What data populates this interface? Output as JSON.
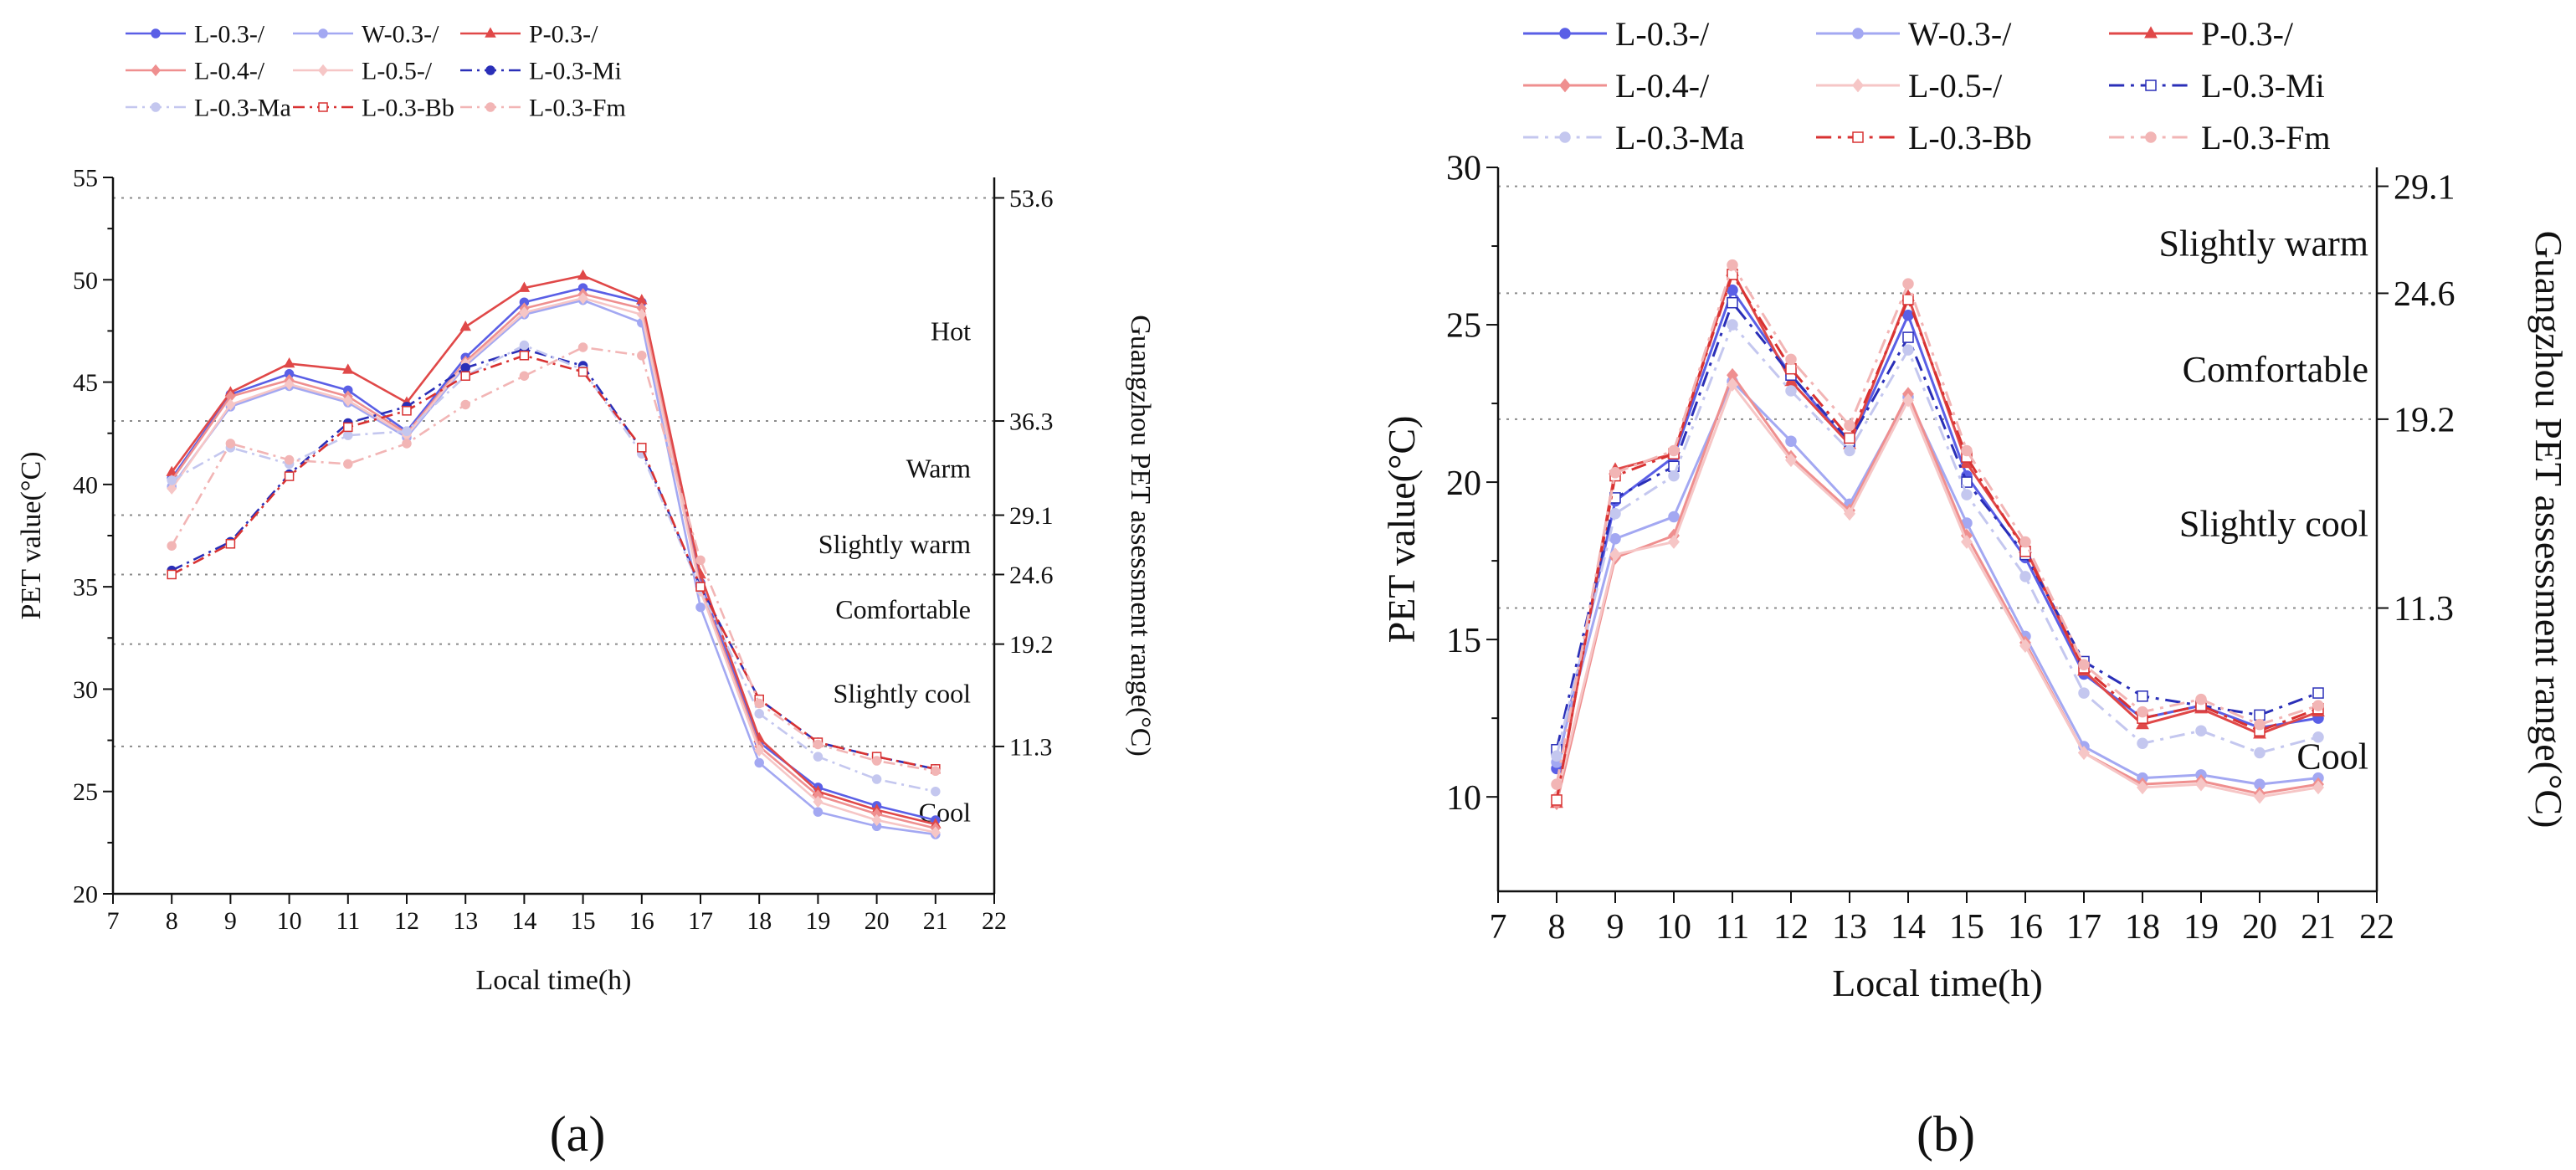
{
  "figure": {
    "panel_labels": [
      "(a)",
      "(b)"
    ]
  },
  "chart_data": [
    {
      "type": "line",
      "panel": "(a)",
      "xlabel": "Local time(h)",
      "ylabel": "PET value(°C)",
      "y2label": "Guangzhou PET assessment range(°C)",
      "xlim": [
        7,
        22
      ],
      "ylim": [
        20,
        55
      ],
      "xticks": [
        7,
        8,
        9,
        10,
        11,
        12,
        13,
        14,
        15,
        16,
        17,
        18,
        19,
        20,
        21,
        22
      ],
      "yticks": [
        20,
        25,
        30,
        35,
        40,
        45,
        50,
        55
      ],
      "x": [
        8,
        9,
        10,
        11,
        12,
        13,
        14,
        15,
        16,
        17,
        18,
        19,
        20,
        21
      ],
      "legend_position": "top",
      "thresholds": [
        {
          "y": 54.0,
          "label": "53.6"
        },
        {
          "y": 43.1,
          "label": "36.3"
        },
        {
          "y": 38.5,
          "label": "29.1"
        },
        {
          "y": 35.6,
          "label": "24.6"
        },
        {
          "y": 32.2,
          "label": "19.2"
        },
        {
          "y": 27.2,
          "label": "11.3"
        }
      ],
      "zones": [
        {
          "y": 47.5,
          "label": "Hot"
        },
        {
          "y": 40.8,
          "label": "Warm"
        },
        {
          "y": 37.1,
          "label": "Slightly warm"
        },
        {
          "y": 33.9,
          "label": "Comfortable"
        },
        {
          "y": 29.8,
          "label": "Slightly cool"
        },
        {
          "y": 24.0,
          "label": "Cool"
        }
      ],
      "series": [
        {
          "name": "L-0.3-/",
          "color": "#5a5fe6",
          "dash": "solid",
          "marker": "circle",
          "values": [
            40.3,
            44.4,
            45.4,
            44.6,
            42.6,
            46.2,
            48.9,
            49.6,
            48.9,
            35.2,
            27.4,
            25.2,
            24.3,
            23.6
          ]
        },
        {
          "name": "W-0.3-/",
          "color": "#a3a8f2",
          "dash": "solid",
          "marker": "circle",
          "values": [
            39.9,
            43.8,
            44.8,
            44.0,
            42.3,
            45.8,
            48.3,
            49.0,
            47.9,
            34.0,
            26.4,
            24.0,
            23.3,
            22.9
          ]
        },
        {
          "name": "P-0.3-/",
          "color": "#e04848",
          "dash": "solid",
          "marker": "triangle",
          "values": [
            40.6,
            44.5,
            45.9,
            45.6,
            44.0,
            47.7,
            49.6,
            50.2,
            49.0,
            35.6,
            27.6,
            25.0,
            24.1,
            23.4
          ]
        },
        {
          "name": "L-0.4-/",
          "color": "#ef8f8f",
          "dash": "solid",
          "marker": "diamond",
          "values": [
            40.2,
            44.3,
            45.1,
            44.3,
            42.5,
            46.0,
            48.6,
            49.3,
            48.6,
            35.0,
            27.2,
            24.8,
            23.9,
            23.2
          ]
        },
        {
          "name": "L-0.5-/",
          "color": "#f6c6c6",
          "dash": "solid",
          "marker": "diamond",
          "values": [
            39.8,
            43.9,
            44.9,
            44.1,
            42.4,
            45.9,
            48.4,
            49.1,
            48.3,
            34.8,
            27.0,
            24.5,
            23.6,
            23.0
          ]
        },
        {
          "name": "L-0.3-Mi",
          "color": "#2a2fb8",
          "dash": "dashdot",
          "marker": "circle",
          "values": [
            35.8,
            37.2,
            40.5,
            43.0,
            43.8,
            45.7,
            46.6,
            45.8,
            41.7,
            35.0,
            29.5,
            27.4,
            26.7,
            26.1
          ]
        },
        {
          "name": "L-0.3-Ma",
          "color": "#c4c7ef",
          "dash": "dashdot",
          "marker": "circle",
          "values": [
            40.2,
            41.8,
            41.0,
            42.4,
            42.6,
            45.3,
            46.8,
            45.6,
            41.5,
            34.9,
            28.8,
            26.7,
            25.6,
            25.0
          ]
        },
        {
          "name": "L-0.3-Bb",
          "color": "#d83232",
          "dash": "dashdot",
          "marker": "square",
          "values": [
            35.6,
            37.1,
            40.4,
            42.8,
            43.6,
            45.3,
            46.3,
            45.5,
            41.8,
            35.0,
            29.5,
            27.4,
            26.7,
            26.1
          ]
        },
        {
          "name": "L-0.3-Fm",
          "color": "#f2b5b5",
          "dash": "dashdot",
          "marker": "circle",
          "values": [
            37.0,
            42.0,
            41.2,
            41.0,
            42.0,
            43.9,
            45.3,
            46.7,
            46.3,
            36.3,
            29.3,
            27.3,
            26.5,
            26.0
          ]
        }
      ]
    },
    {
      "type": "line",
      "panel": "(b)",
      "xlabel": "Local time(h)",
      "ylabel": "PET value(°C)",
      "y2label": "Guangzhou PET assessment range(°C)",
      "xlim": [
        7,
        22
      ],
      "ylim": [
        7,
        30
      ],
      "xticks": [
        7,
        8,
        9,
        10,
        11,
        12,
        13,
        14,
        15,
        16,
        17,
        18,
        19,
        20,
        21,
        22
      ],
      "yticks": [
        10,
        15,
        20,
        25,
        30
      ],
      "x": [
        8,
        9,
        10,
        11,
        12,
        13,
        14,
        15,
        16,
        17,
        18,
        19,
        20,
        21
      ],
      "legend_position": "top",
      "thresholds": [
        {
          "y": 29.4,
          "label": "29.1"
        },
        {
          "y": 26.0,
          "label": "24.6"
        },
        {
          "y": 22.0,
          "label": "19.2"
        },
        {
          "y": 16.0,
          "label": "11.3"
        }
      ],
      "zones": [
        {
          "y": 27.6,
          "label": "Slightly warm"
        },
        {
          "y": 23.6,
          "label": "Comfortable"
        },
        {
          "y": 18.7,
          "label": "Slightly cool"
        },
        {
          "y": 11.3,
          "label": "Cool"
        }
      ],
      "series": [
        {
          "name": "L-0.3-/",
          "color": "#5a5fe6",
          "dash": "solid",
          "marker": "circle",
          "values": [
            10.9,
            19.4,
            20.8,
            26.1,
            23.4,
            21.2,
            25.3,
            20.2,
            17.6,
            13.9,
            12.5,
            12.9,
            12.2,
            12.5
          ]
        },
        {
          "name": "W-0.3-/",
          "color": "#a3a8f2",
          "dash": "solid",
          "marker": "circle",
          "values": [
            11.1,
            18.2,
            18.9,
            23.2,
            21.3,
            19.3,
            22.7,
            18.7,
            15.1,
            11.6,
            10.6,
            10.7,
            10.4,
            10.6
          ]
        },
        {
          "name": "P-0.3-/",
          "color": "#e04848",
          "dash": "solid",
          "marker": "triangle",
          "values": [
            9.8,
            20.4,
            20.9,
            26.7,
            23.2,
            21.2,
            25.9,
            20.6,
            17.9,
            14.0,
            12.3,
            12.8,
            12.0,
            12.7
          ]
        },
        {
          "name": "L-0.4-/",
          "color": "#ef8f8f",
          "dash": "solid",
          "marker": "diamond",
          "values": [
            9.8,
            17.6,
            18.3,
            23.4,
            20.8,
            19.1,
            22.8,
            18.3,
            14.9,
            11.4,
            10.4,
            10.5,
            10.1,
            10.4
          ]
        },
        {
          "name": "L-0.5-/",
          "color": "#f6c6c6",
          "dash": "solid",
          "marker": "diamond",
          "values": [
            10.0,
            17.7,
            18.1,
            23.1,
            20.7,
            19.0,
            22.6,
            18.1,
            14.8,
            11.4,
            10.3,
            10.4,
            10.0,
            10.3
          ]
        },
        {
          "name": "L-0.3-Mi",
          "color": "#2a2fb8",
          "dash": "dashdot",
          "marker": "square",
          "values": [
            11.5,
            19.5,
            20.5,
            25.7,
            23.4,
            21.3,
            24.6,
            20.0,
            17.7,
            14.3,
            13.2,
            12.9,
            12.6,
            13.3
          ]
        },
        {
          "name": "L-0.3-Ma",
          "color": "#c4c7ef",
          "dash": "dashdot",
          "marker": "circle",
          "values": [
            11.3,
            19.0,
            20.2,
            25.0,
            22.9,
            21.0,
            24.2,
            19.6,
            17.0,
            13.3,
            11.7,
            12.1,
            11.4,
            11.9
          ]
        },
        {
          "name": "L-0.3-Bb",
          "color": "#d83232",
          "dash": "dashdot",
          "marker": "square",
          "values": [
            9.9,
            20.2,
            20.9,
            26.6,
            23.6,
            21.4,
            25.8,
            20.8,
            17.8,
            14.1,
            12.5,
            12.9,
            12.1,
            12.8
          ]
        },
        {
          "name": "L-0.3-Fm",
          "color": "#f2b5b5",
          "dash": "dashdot",
          "marker": "circle",
          "values": [
            10.4,
            20.3,
            21.0,
            26.9,
            23.9,
            21.8,
            26.3,
            21.0,
            18.1,
            14.2,
            12.7,
            13.1,
            12.3,
            12.9
          ]
        }
      ]
    }
  ]
}
